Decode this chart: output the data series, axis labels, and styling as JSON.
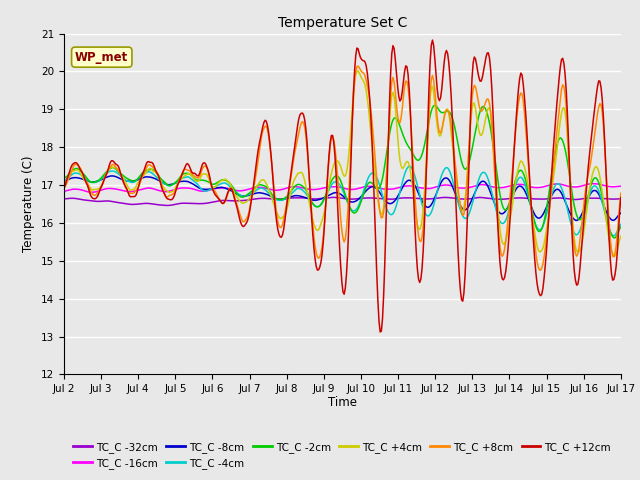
{
  "title": "Temperature Set C",
  "xlabel": "Time",
  "ylabel": "Temperature (C)",
  "ylim": [
    12.0,
    21.0
  ],
  "yticks": [
    12.0,
    13.0,
    14.0,
    15.0,
    16.0,
    17.0,
    18.0,
    19.0,
    20.0,
    21.0
  ],
  "xtick_labels": [
    "Jul 2",
    "Jul 3",
    "Jul 4",
    "Jul 5",
    "Jul 6",
    "Jul 7",
    "Jul 8",
    "Jul 9",
    "Jul 10",
    "Jul 11",
    "Jul 12",
    "Jul 13",
    "Jul 14",
    "Jul 15",
    "Jul 16",
    "Jul 17"
  ],
  "series": [
    {
      "label": "TC_C -32cm",
      "color": "#9900CC"
    },
    {
      "label": "TC_C -16cm",
      "color": "#FF00FF"
    },
    {
      "label": "TC_C -8cm",
      "color": "#0000CC"
    },
    {
      "label": "TC_C -4cm",
      "color": "#00CCCC"
    },
    {
      "label": "TC_C -2cm",
      "color": "#00CC00"
    },
    {
      "label": "TC_C +4cm",
      "color": "#CCCC00"
    },
    {
      "label": "TC_C +8cm",
      "color": "#FF8800"
    },
    {
      "label": "TC_C +12cm",
      "color": "#CC0000"
    }
  ],
  "annotation_text": "WP_met",
  "background_color": "#E8E8E8",
  "grid_color": "#FFFFFF",
  "n_points": 480
}
